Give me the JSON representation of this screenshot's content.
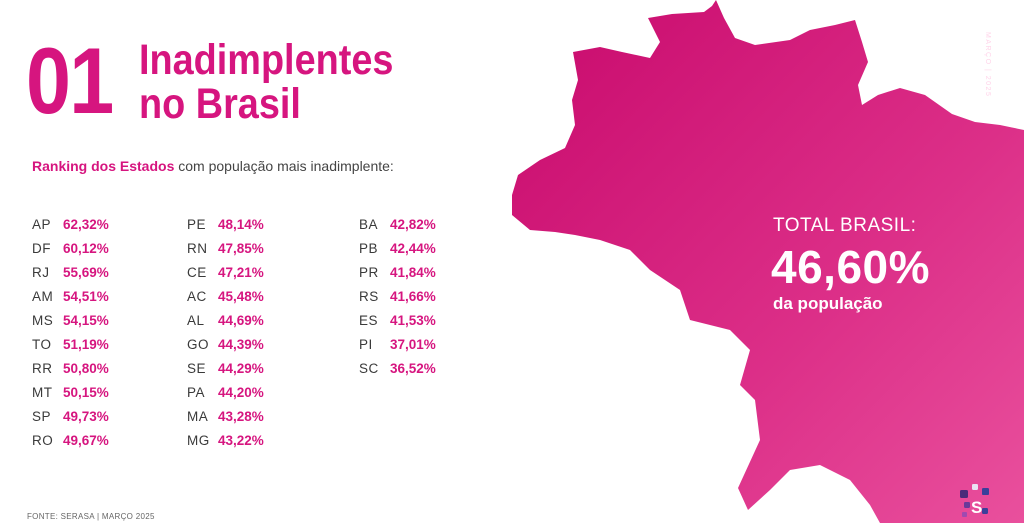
{
  "header": {
    "number": "01",
    "title_line1": "Inadimplentes",
    "title_line2": "no Brasil"
  },
  "subtitle": {
    "highlight": "Ranking dos Estados",
    "rest": " com população mais inadimplente:"
  },
  "ranking": {
    "col1": [
      {
        "state": "AP",
        "value": "62,32%"
      },
      {
        "state": "DF",
        "value": "60,12%"
      },
      {
        "state": "RJ",
        "value": "55,69%"
      },
      {
        "state": "AM",
        "value": "54,51%"
      },
      {
        "state": "MS",
        "value": "54,15%"
      },
      {
        "state": "TO",
        "value": "51,19%"
      },
      {
        "state": "RR",
        "value": "50,80%"
      },
      {
        "state": "MT",
        "value": "50,15%"
      },
      {
        "state": "SP",
        "value": "49,73%"
      },
      {
        "state": "RO",
        "value": "49,67%"
      }
    ],
    "col2": [
      {
        "state": "PE",
        "value": "48,14%"
      },
      {
        "state": "RN",
        "value": "47,85%"
      },
      {
        "state": "CE",
        "value": "47,21%"
      },
      {
        "state": "AC",
        "value": "45,48%"
      },
      {
        "state": "AL",
        "value": "44,69%"
      },
      {
        "state": "GO",
        "value": "44,39%"
      },
      {
        "state": "SE",
        "value": "44,29%"
      },
      {
        "state": "PA",
        "value": "44,20%"
      },
      {
        "state": "MA",
        "value": "43,28%"
      },
      {
        "state": "MG",
        "value": "43,22%"
      }
    ],
    "col3": [
      {
        "state": "BA",
        "value": "42,82%"
      },
      {
        "state": "PB",
        "value": "42,44%"
      },
      {
        "state": "PR",
        "value": "41,84%"
      },
      {
        "state": "RS",
        "value": "41,66%"
      },
      {
        "state": "ES",
        "value": "41,53%"
      },
      {
        "state": "PI",
        "value": "37,01%"
      },
      {
        "state": "SC",
        "value": "36,52%"
      }
    ]
  },
  "total": {
    "label": "TOTAL BRASIL:",
    "value": "46,60%",
    "sub": "da população"
  },
  "date_vertical": "MARÇO | 2025",
  "source": "FONTE: SERASA | MARÇO  2025",
  "colors": {
    "accent": "#d6157f",
    "map_light": "#e64b99",
    "map_dark": "#c8096c"
  },
  "icons": {
    "logo": "serasa-logo-icon"
  }
}
